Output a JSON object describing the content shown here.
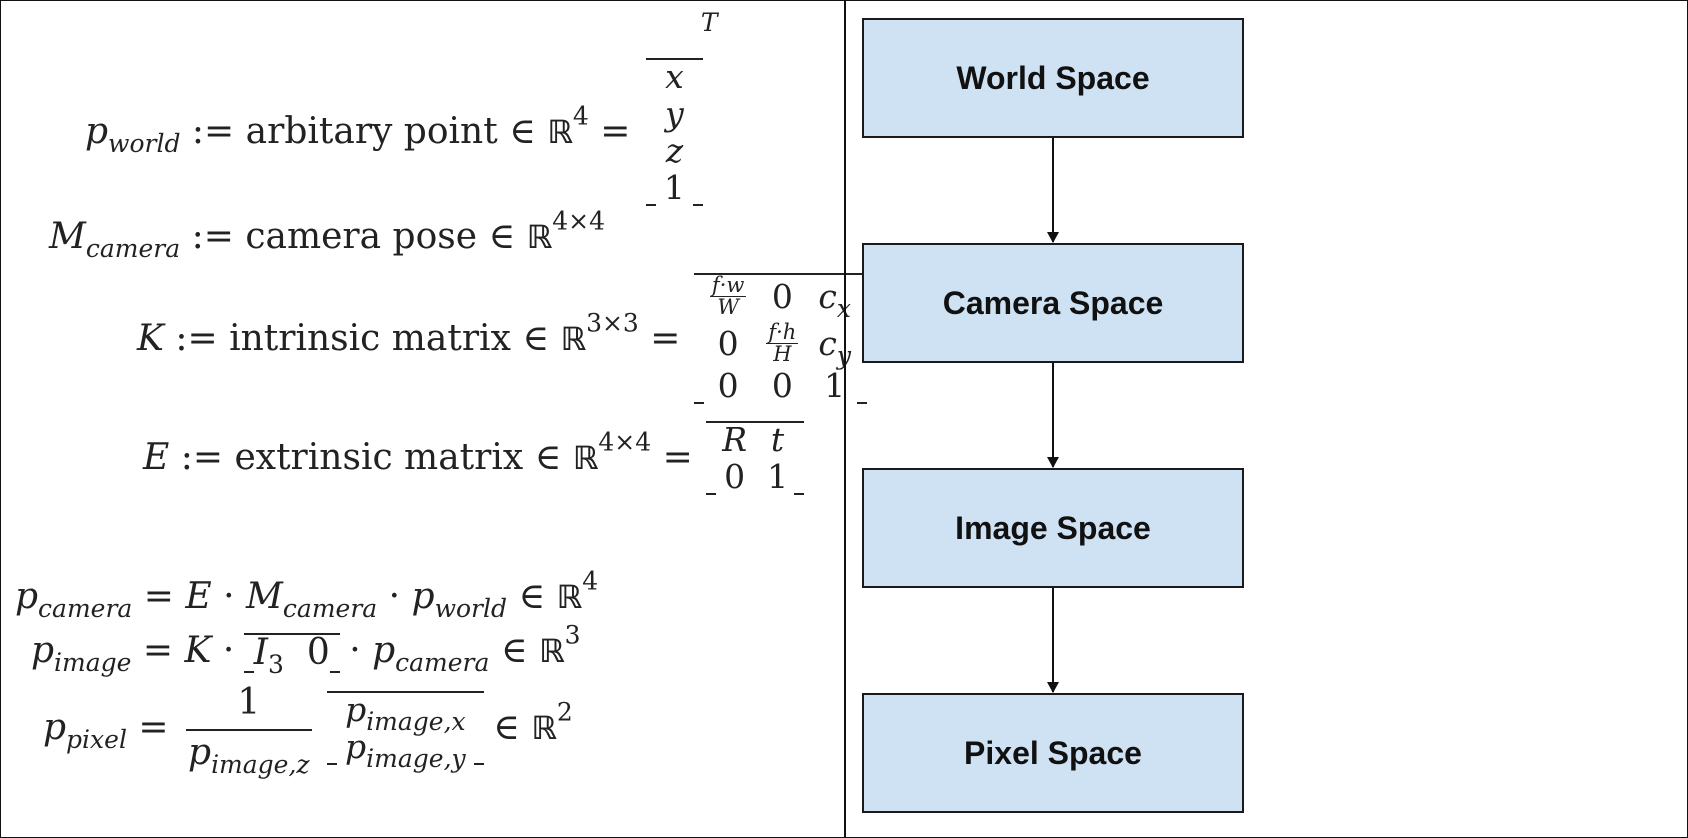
{
  "math": {
    "p_world": {
      "lhs": "p",
      "lhs_sub": "world",
      "assign": ":=",
      "desc": "arbitary point",
      "in": "∈",
      "R": "ℝ",
      "R_sup": "4",
      "eq": "=",
      "vector": [
        "x",
        "y",
        "z",
        "1"
      ],
      "transpose": "T"
    },
    "m_camera": {
      "lhs": "M",
      "lhs_sub": "camera",
      "assign": ":=",
      "desc": "camera pose",
      "in": "∈",
      "R": "ℝ",
      "R_sup": "4×4"
    },
    "k": {
      "lhs": "K",
      "assign": ":=",
      "desc": "intrinsic matrix",
      "in": "∈",
      "R": "ℝ",
      "R_sup": "3×3",
      "eq": "=",
      "f_w_num": "f·w",
      "f_w_den": "W",
      "f_h_num": "f·h",
      "f_h_den": "H",
      "zero": "0",
      "one": "1",
      "cx": "c",
      "cx_sub": "x",
      "cy": "c",
      "cy_sub": "y"
    },
    "e": {
      "lhs": "E",
      "assign": ":=",
      "desc": "extrinsic matrix",
      "in": "∈",
      "R": "ℝ",
      "R_sup": "4×4",
      "eq": "=",
      "rot": "R",
      "trans": "t",
      "zero": "0",
      "one": "1"
    },
    "p_camera": {
      "lhs": "p",
      "lhs_sub": "camera",
      "eq": "=",
      "E": "E",
      "dot": "·",
      "M": "M",
      "M_sub": "camera",
      "p": "p",
      "p_sub": "world",
      "in": "∈",
      "R": "ℝ",
      "R_sup": "4"
    },
    "p_image": {
      "lhs": "p",
      "lhs_sub": "image",
      "eq": "=",
      "K": "K",
      "dot": "·",
      "I": "I",
      "I_sub": "3",
      "zero": "0",
      "p": "p",
      "p_sub": "camera",
      "in": "∈",
      "R": "ℝ",
      "R_sup": "3"
    },
    "p_pixel": {
      "lhs": "p",
      "lhs_sub": "pixel",
      "eq": "=",
      "num": "1",
      "den": "p",
      "den_sub": "image,z",
      "v1": "p",
      "v1_sub": "image,x",
      "v2": "p",
      "v2_sub": "image,y",
      "in": "∈",
      "R": "ℝ",
      "R_sup": "2"
    }
  },
  "flow": {
    "boxes": [
      "World Space",
      "Camera Space",
      "Image Space",
      "Pixel Space"
    ],
    "box_color": "#cfe2f3"
  }
}
